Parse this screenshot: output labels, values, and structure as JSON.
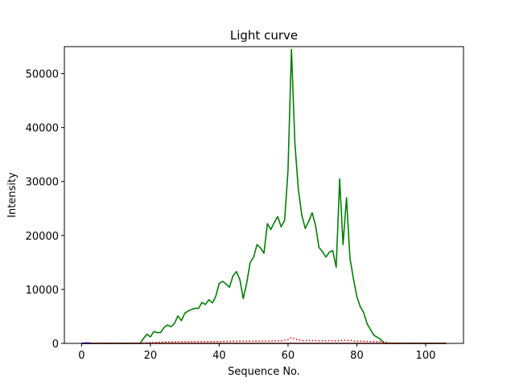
{
  "chart_data": {
    "type": "line",
    "title": "Light curve",
    "xlabel": "Sequence No.",
    "ylabel": "Intensity",
    "xlim": [
      -5,
      111
    ],
    "ylim": [
      0,
      55000
    ],
    "xticks": [
      0,
      20,
      40,
      60,
      80,
      100
    ],
    "yticks": [
      0,
      10000,
      20000,
      30000,
      40000,
      50000
    ],
    "grid": false,
    "series": [
      {
        "color": "#008000",
        "style": "solid",
        "x": [
          0,
          1,
          2,
          3,
          4,
          5,
          6,
          7,
          8,
          9,
          10,
          11,
          12,
          13,
          14,
          15,
          16,
          17,
          18,
          19,
          20,
          21,
          22,
          23,
          24,
          25,
          26,
          27,
          28,
          29,
          30,
          31,
          32,
          33,
          34,
          35,
          36,
          37,
          38,
          39,
          40,
          41,
          42,
          43,
          44,
          45,
          46,
          47,
          48,
          49,
          50,
          51,
          52,
          53,
          54,
          55,
          56,
          57,
          58,
          59,
          60,
          61,
          62,
          63,
          64,
          65,
          66,
          67,
          68,
          69,
          70,
          71,
          72,
          73,
          74,
          75,
          76,
          77,
          78,
          79,
          80,
          81,
          82,
          83,
          84,
          85,
          86,
          87,
          88,
          89,
          90,
          91,
          92,
          93,
          94,
          95,
          96,
          97,
          98,
          99,
          100,
          101,
          102,
          103,
          104,
          105,
          106
        ],
        "y": [
          0,
          0,
          0,
          0,
          0,
          0,
          0,
          0,
          0,
          0,
          0,
          0,
          0,
          0,
          0,
          0,
          0,
          0,
          900,
          1700,
          1200,
          2200,
          2000,
          2000,
          3000,
          3400,
          3100,
          3700,
          5100,
          4200,
          5600,
          6000,
          6300,
          6500,
          6500,
          7600,
          7200,
          8100,
          7500,
          8700,
          11100,
          11500,
          11000,
          10400,
          12500,
          13300,
          11800,
          8300,
          11200,
          15000,
          16000,
          18300,
          17700,
          16700,
          22200,
          21100,
          22400,
          23500,
          21600,
          22800,
          32000,
          54500,
          37000,
          28500,
          23800,
          21300,
          22600,
          24200,
          21900,
          17800,
          17000,
          16000,
          16900,
          17200,
          14100,
          30500,
          18300,
          27000,
          15800,
          12000,
          8700,
          6800,
          5700,
          3600,
          2500,
          1500,
          1100,
          700,
          0,
          0,
          0,
          0,
          0,
          0,
          0,
          0,
          0,
          0,
          0,
          0,
          0,
          0,
          0,
          0,
          0,
          0,
          0
        ]
      },
      {
        "color": "#ff0000",
        "style": "dotted",
        "x": [
          0,
          5,
          10,
          15,
          17,
          20,
          25,
          30,
          35,
          40,
          45,
          50,
          55,
          58,
          60,
          61,
          62,
          64,
          66,
          68,
          70,
          72,
          74,
          76,
          78,
          80,
          85,
          88,
          90,
          95,
          100,
          106
        ],
        "y": [
          0,
          0,
          0,
          0,
          0,
          150,
          250,
          300,
          320,
          350,
          400,
          420,
          450,
          480,
          700,
          1100,
          800,
          500,
          550,
          500,
          480,
          500,
          450,
          600,
          550,
          400,
          350,
          300,
          0,
          0,
          0,
          0
        ]
      },
      {
        "color": "#8b0000",
        "style": "solid",
        "x": [
          0,
          106
        ],
        "y": [
          0,
          0
        ]
      },
      {
        "color": "#0000ff",
        "style": "solid",
        "x": [
          0,
          1,
          2,
          3
        ],
        "y": [
          0,
          80,
          80,
          0
        ]
      }
    ]
  }
}
